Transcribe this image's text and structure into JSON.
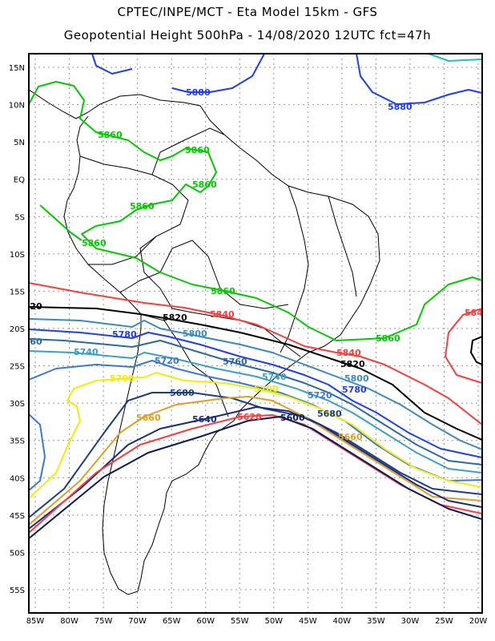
{
  "header": {
    "title_line1": "CPTEC/INPE/MCT -   Eta Model 15km - GFS",
    "title_line2": "Geopotential Height 500hPa - 14/08/2020 12UTC fct=47h"
  },
  "axes": {
    "lat_labels": [
      "15N",
      "10N",
      "5N",
      "EQ",
      "5S",
      "10S",
      "15S",
      "20S",
      "25S",
      "30S",
      "35S",
      "40S",
      "45S",
      "50S",
      "55S"
    ],
    "lon_labels": [
      "85W",
      "80W",
      "75W",
      "70W",
      "65W",
      "60W",
      "55W",
      "50W",
      "45W",
      "40W",
      "35W",
      "30W",
      "25W",
      "20W"
    ]
  },
  "contours": {
    "c5880": {
      "label": "5880",
      "color": "#1e3cff"
    },
    "c5860": {
      "label": "5860",
      "color": "#00cc00"
    },
    "c5840": {
      "label": "5840",
      "color": "#ff3c3c"
    },
    "c5820": {
      "label": "5820",
      "color": "#000000"
    },
    "c5800": {
      "label": "5800",
      "color": "#3a8ac0"
    },
    "c5780": {
      "label": "5780",
      "color": "#1e3cff"
    },
    "c5760": {
      "label": "5760",
      "color": "#2a6aa0"
    },
    "c5740": {
      "label": "5740",
      "color": "#3aa0c8"
    },
    "c5720": {
      "label": "5720",
      "color": "#3a78e0"
    },
    "c5700": {
      "label": "5700",
      "color": "#f0f000"
    },
    "c5680": {
      "label": "5680",
      "color": "#1e3c8c"
    },
    "c5660": {
      "label": "5660",
      "color": "#e0a020"
    },
    "c5640": {
      "label": "5640",
      "color": "#1a2a80"
    },
    "c5620": {
      "label": "5620",
      "color": "#ff3c3c"
    },
    "c5600": {
      "label": "5600",
      "color": "#0a1a60"
    },
    "c5900": {
      "color": "#20c0c0"
    }
  }
}
